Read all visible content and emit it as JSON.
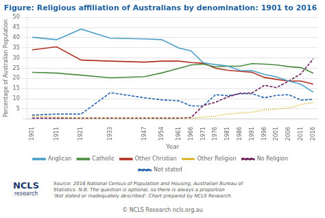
{
  "chart_data": {
    "type": "line",
    "title": "Figure: Religious affiliation of Australians by denomination: 1901 to 2016",
    "x_label": "Year",
    "y_label": "Percentage of Australian Population",
    "x": [
      1901,
      1911,
      1921,
      1933,
      1947,
      1954,
      1961,
      1966,
      1971,
      1976,
      1981,
      1986,
      1991,
      1996,
      2001,
      2006,
      2011,
      2016
    ],
    "series": [
      {
        "name": "Anglican",
        "color": "#4a9ec8",
        "line_style": "solid",
        "values": [
          40.2,
          39.0,
          44.2,
          39.7,
          39.4,
          39.0,
          34.9,
          33.5,
          27.7,
          26.8,
          26.1,
          23.9,
          23.8,
          22.0,
          20.7,
          18.7,
          17.1,
          13.3
        ]
      },
      {
        "name": "Catholic",
        "color": "#4a8c3f",
        "line_style": "solid",
        "values": [
          23.0,
          22.6,
          21.6,
          20.3,
          20.9,
          22.7,
          24.9,
          26.6,
          27.0,
          25.7,
          26.0,
          26.0,
          27.3,
          27.0,
          26.6,
          25.8,
          25.3,
          22.6
        ]
      },
      {
        "name": "Other Christian",
        "color": "#b03020",
        "line_style": "solid",
        "values": [
          34.0,
          35.5,
          29.0,
          28.5,
          28.0,
          28.5,
          28.5,
          27.8,
          27.5,
          25.0,
          24.0,
          23.5,
          23.0,
          20.5,
          19.5,
          18.7,
          18.7,
          17.2
        ]
      },
      {
        "name": "Other Religion",
        "color": "#d4a800",
        "line_style": "dotted",
        "values": [
          1.5,
          1.0,
          0.5,
          0.5,
          0.5,
          0.5,
          0.5,
          0.5,
          1.0,
          1.5,
          2.5,
          3.0,
          3.5,
          4.5,
          5.0,
          5.5,
          7.2,
          8.2
        ]
      },
      {
        "name": "No Religion",
        "color": "#6b1a5a",
        "line_style": "dashed",
        "values": [
          0.5,
          0.5,
          0.5,
          0.5,
          0.5,
          0.5,
          0.5,
          0.8,
          6.7,
          8.3,
          10.9,
          12.7,
          12.9,
          16.6,
          15.5,
          18.7,
          22.3,
          29.6
        ]
      },
      {
        "name": "Not stated",
        "color": "#2060b0",
        "line_style": "dashed",
        "values": [
          2.0,
          2.5,
          2.5,
          13.0,
          10.5,
          9.5,
          9.0,
          6.5,
          6.5,
          12.0,
          11.5,
          12.5,
          12.5,
          10.5,
          11.7,
          12.0,
          9.4,
          9.7
        ]
      }
    ],
    "xlim": [
      1899,
      2018
    ],
    "xticks": [
      1901,
      1911,
      1921,
      1933,
      1947,
      1954,
      1961,
      1966,
      1971,
      1976,
      1981,
      1986,
      1991,
      1996,
      2001,
      2006,
      2011,
      2016
    ],
    "ylim": [
      0,
      50
    ],
    "yticks": [
      {
        "value": 0,
        "label": ""
      },
      5,
      10,
      15,
      20,
      25,
      30,
      35,
      40,
      45,
      50
    ],
    "grid": "y",
    "legend": "bottom",
    "annotations": [
      "NCLS",
      "research",
      "Source: 2016 National Census of Population and Housing, Australian Bureau of\nStatistics. N.B. The question is optional, so there is always a proportion\n'Not stated or inadequately described'. Chart prepared by NCLS Research.",
      "© NCLS Research      ncls.org.au"
    ]
  }
}
